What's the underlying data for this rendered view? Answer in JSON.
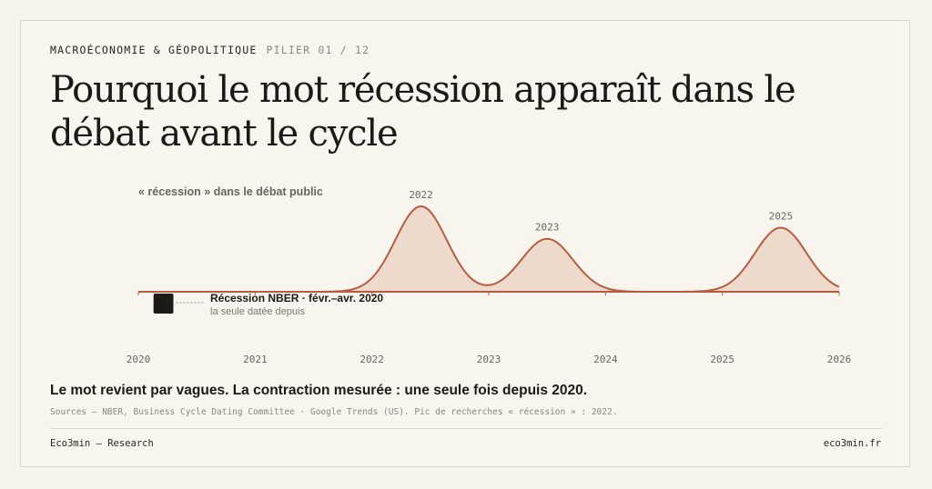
{
  "header": {
    "kicker": "MACROÉCONOMIE & GÉOPOLITIQUE",
    "pillar": "PILIER 01 / 12",
    "title": "Pourquoi le mot récession apparaît dans le débat avant le cycle"
  },
  "chart_data": {
    "type": "area",
    "title": "« récession » dans le débat public",
    "x_range": [
      2020,
      2026
    ],
    "x_ticks": [
      "2020",
      "2021",
      "2022",
      "2023",
      "2024",
      "2025",
      "2026"
    ],
    "y_range": [
      0,
      100
    ],
    "peaks": [
      {
        "label": "2022",
        "x": 2022.42,
        "value": 100
      },
      {
        "label": "2023",
        "x": 2023.5,
        "value": 62
      },
      {
        "label": "2025",
        "x": 2025.5,
        "value": 75
      }
    ],
    "recession": {
      "label": "Récession NBER · févr.–avr. 2020",
      "sublabel": "la seule datée depuis",
      "start": 2020.13,
      "end": 2020.3
    },
    "colors": {
      "line": "#b85c3e",
      "fill": "#eddacd",
      "recession": "#1c1a17",
      "axis_label": "#6b665d"
    }
  },
  "caption": "Le mot revient par vagues. La contraction mesurée : une seule fois depuis 2020.",
  "sources": "Sources — NBER, Business Cycle Dating Committee · Google Trends (US). Pic de recherches « récession » : 2022.",
  "footer": {
    "left": "Eco3min — Research",
    "right": "eco3min.fr"
  }
}
